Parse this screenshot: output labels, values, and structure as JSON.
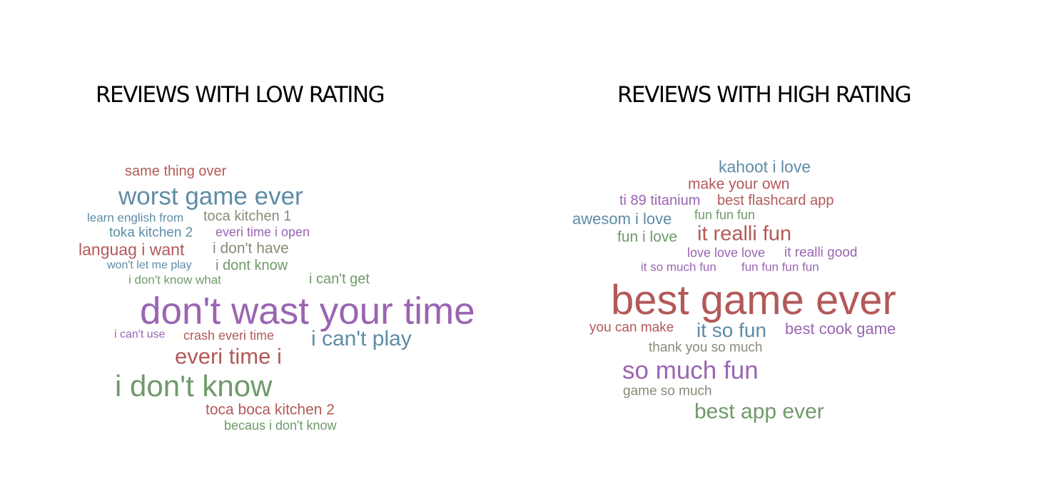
{
  "low_panel": {
    "title": "REVIEWS WITH LOW RATING",
    "words": [
      "same thing over",
      "worst game ever",
      "learn english from",
      "toca kitchen 1",
      "toka kitchen 2",
      "everi time i open",
      "languag i want",
      "i don't have",
      "won't let me play",
      "i dont know",
      "i don't know what",
      "i can't get",
      "don't wast your time",
      "i can't use",
      "crash everi time",
      "i can't play",
      "everi time i",
      "i don't know",
      "toca boca kitchen 2",
      "becaus i don't know"
    ]
  },
  "high_panel": {
    "title": "REVIEWS WITH HIGH RATING",
    "words": [
      "kahoot i love",
      "make your own",
      "ti 89 titanium",
      "best flashcard app",
      "awesom i love",
      "fun fun fun",
      "fun i love",
      "it realli fun",
      "love love love",
      "it realli good",
      "it so much fun",
      "fun fun fun fun",
      "best game ever",
      "you can make",
      "it so fun",
      "best cook game",
      "thank you so much",
      "so much fun",
      "game so much",
      "best app ever"
    ]
  },
  "palette": {
    "red": "#b35959",
    "blue": "#5e8ca6",
    "purple": "#9a65b2",
    "green": "#6f9a6a",
    "gray": "#8a8a7a"
  }
}
